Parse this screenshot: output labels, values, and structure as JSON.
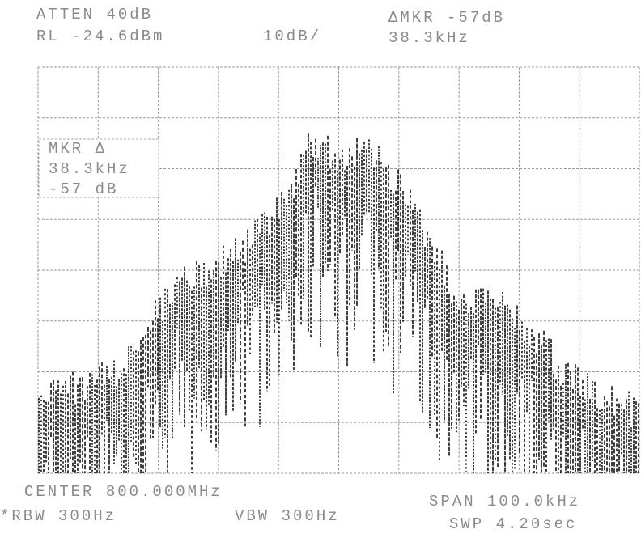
{
  "header": {
    "atten": "ATTEN 40dB",
    "ref_level": "RL -24.6dBm",
    "scale": "10dB/",
    "delta_marker": "ΔMKR -57dB",
    "delta_freq": "38.3kHz"
  },
  "marker_box": {
    "label": "MKR Δ",
    "freq": "38.3kHz",
    "level": "-57 dB"
  },
  "footer": {
    "center": "CENTER 800.000MHz",
    "span": "SPAN 100.0kHz",
    "rbw": "*RBW 300Hz",
    "vbw": "VBW 300Hz",
    "sweep": "SWP 4.20sec"
  }
}
